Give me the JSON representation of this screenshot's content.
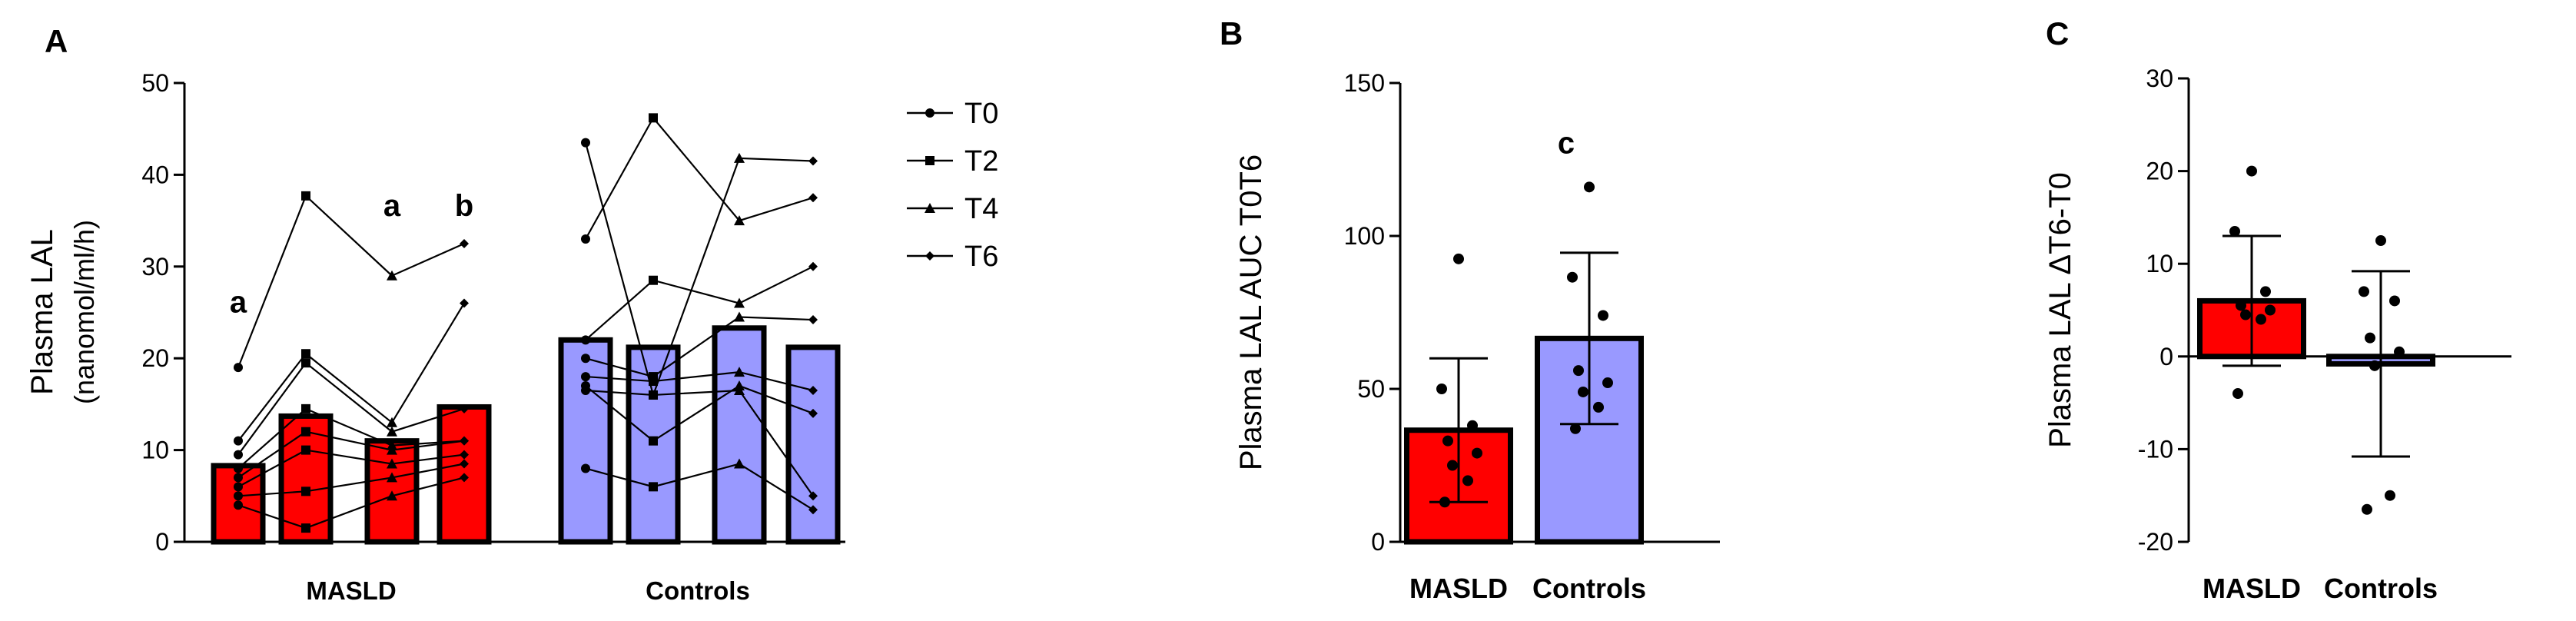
{
  "colors": {
    "masld": "#ff0000",
    "controls": "#9999ff",
    "axis": "#000000"
  },
  "chart_data": [
    {
      "panel": "A",
      "type": "bar",
      "ylabel": [
        "Plasma LAL",
        "(nanomol/ml/h)"
      ],
      "ylim": [
        0,
        50
      ],
      "yticks": [
        0,
        10,
        20,
        30,
        40,
        50
      ],
      "groups": [
        "MASLD",
        "Controls"
      ],
      "timepoints": [
        "T0",
        "T2",
        "T4",
        "T6"
      ],
      "bars": [
        {
          "group": "MASLD",
          "tp": "T0",
          "value": 8.3
        },
        {
          "group": "MASLD",
          "tp": "T2",
          "value": 13.7
        },
        {
          "group": "MASLD",
          "tp": "T4",
          "value": 11.0
        },
        {
          "group": "MASLD",
          "tp": "T6",
          "value": 14.7
        },
        {
          "group": "Controls",
          "tp": "T0",
          "value": 22.0
        },
        {
          "group": "Controls",
          "tp": "T2",
          "value": 21.2
        },
        {
          "group": "Controls",
          "tp": "T4",
          "value": 23.3
        },
        {
          "group": "Controls",
          "tp": "T6",
          "value": 21.2
        }
      ],
      "subjects": {
        "MASLD": [
          [
            19.0,
            37.7,
            29.0,
            32.5
          ],
          [
            11.0,
            20.5,
            13.0,
            26.0
          ],
          [
            9.5,
            19.5,
            12.0,
            14.5
          ],
          [
            8.0,
            14.5,
            10.5,
            11.0
          ],
          [
            7.0,
            12.0,
            10.0,
            11.0
          ],
          [
            6.0,
            10.0,
            8.5,
            9.5
          ],
          [
            5.0,
            5.5,
            7.0,
            8.5
          ],
          [
            4.0,
            1.5,
            5.0,
            7.0
          ]
        ],
        "Controls": [
          [
            43.5,
            16.0,
            41.8,
            41.5
          ],
          [
            33.0,
            46.2,
            35.0,
            37.5
          ],
          [
            22.0,
            28.5,
            26.0,
            30.0
          ],
          [
            20.0,
            18.0,
            24.5,
            24.2
          ],
          [
            18.0,
            17.5,
            18.5,
            16.5
          ],
          [
            17.0,
            11.0,
            17.0,
            14.0
          ],
          [
            16.5,
            16.0,
            16.5,
            5.0
          ],
          [
            8.0,
            6.0,
            8.5,
            3.5
          ]
        ]
      },
      "annotations": [
        {
          "text": "a",
          "group": "MASLD",
          "tp": "T0",
          "y": 25
        },
        {
          "text": "a",
          "group": "MASLD",
          "tp": "T4",
          "y": 35.5
        },
        {
          "text": "b",
          "group": "MASLD",
          "tp": "T6",
          "y": 35.5
        }
      ],
      "legend_position": "right"
    },
    {
      "panel": "B",
      "type": "bar",
      "ylabel": "Plasma LAL AUC T0T6",
      "ylim": [
        0,
        150
      ],
      "yticks": [
        0,
        50,
        100,
        150
      ],
      "categories": [
        "MASLD",
        "Controls"
      ],
      "values": [
        36.5,
        66.5
      ],
      "errors": [
        23.5,
        28.0
      ],
      "points": [
        [
          92.5,
          50.0,
          38.0,
          33.0,
          29.0,
          25.0,
          20.0,
          13.0
        ],
        [
          116.0,
          86.5,
          74.0,
          56.0,
          52.0,
          49.0,
          44.0,
          37.0
        ]
      ],
      "annotation": {
        "text": "c",
        "y": 127
      }
    },
    {
      "panel": "C",
      "type": "bar",
      "ylabel": "Plasma LAL ΔT6-T0",
      "ylim": [
        -20,
        30
      ],
      "yticks": [
        -20,
        -10,
        0,
        10,
        20,
        30
      ],
      "categories": [
        "MASLD",
        "Controls"
      ],
      "values": [
        6.0,
        -0.8
      ],
      "errors": [
        7.0,
        10.0
      ],
      "points": [
        [
          20.0,
          13.5,
          7.0,
          5.5,
          5.0,
          4.5,
          4.0,
          -4.0
        ],
        [
          12.5,
          7.0,
          6.0,
          2.0,
          0.5,
          -1.0,
          -15.0,
          -16.5
        ]
      ]
    }
  ]
}
